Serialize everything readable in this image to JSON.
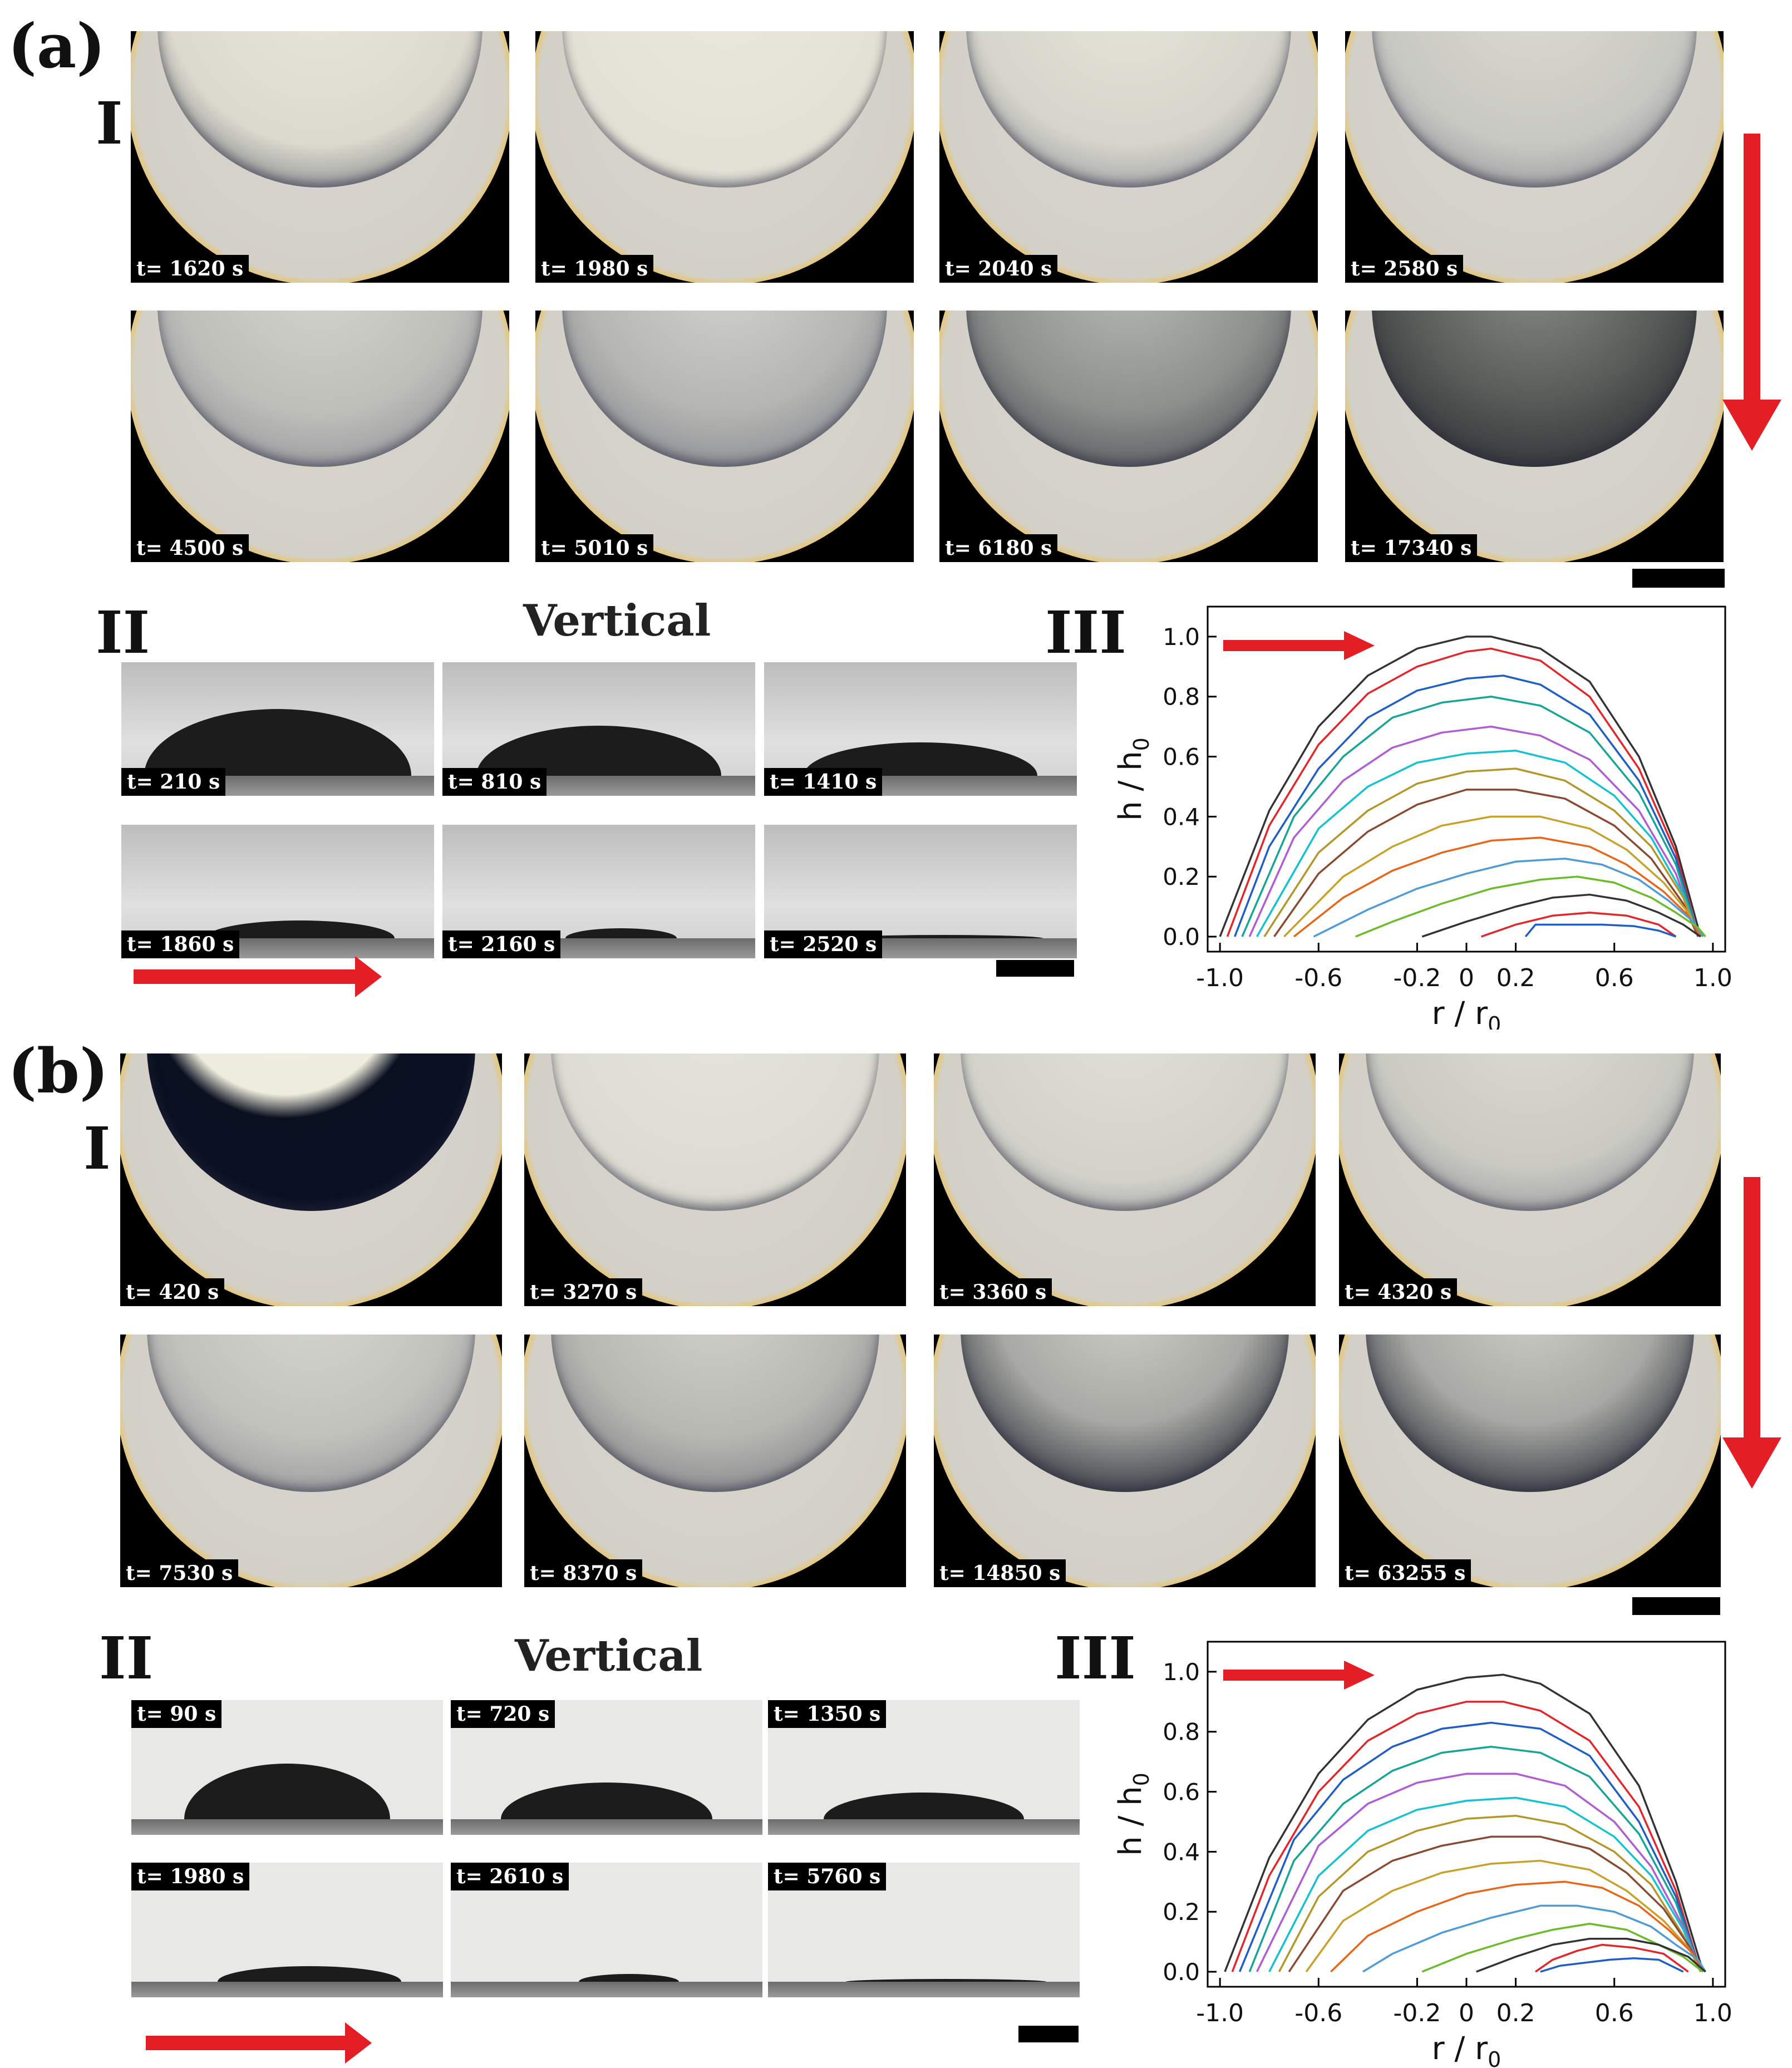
{
  "panel_a": {
    "label": "(a)",
    "sub_I": "I",
    "sub_II": "II",
    "sub_III": "III",
    "vertical": "Vertical",
    "top_times": [
      "t= 1620 s",
      "t= 1980 s",
      "t= 2040 s",
      "t= 2580 s",
      "t= 4500 s",
      "t= 5010 s",
      "t= 6180 s",
      "t= 17340 s"
    ],
    "side_times": [
      "t= 210 s",
      "t= 810 s",
      "t= 1410 s",
      "t= 1860 s",
      "t= 2160 s",
      "t= 2520 s"
    ]
  },
  "panel_b": {
    "label": "(b)",
    "sub_I": "I",
    "sub_II": "II",
    "sub_III": "III",
    "vertical": "Vertical",
    "top_times": [
      "t= 420 s",
      "t= 3270 s",
      "t= 3360 s",
      "t= 4320 s",
      "t= 7530 s",
      "t= 8370 s",
      "t= 14850 s",
      "t= 63255 s"
    ],
    "side_times": [
      "t= 90 s",
      "t= 720 s",
      "t= 1350 s",
      "t= 1980 s",
      "t= 2610 s",
      "t= 5760 s"
    ]
  },
  "chart_data": [
    {
      "type": "line",
      "panel": "a-III",
      "xlabel": "r / r0",
      "ylabel": "h / h0",
      "xlim": [
        -1.05,
        1.05
      ],
      "ylim": [
        -0.05,
        1.1
      ],
      "xticks": [
        "-1.0",
        "-0.6",
        "-0.2",
        "0",
        "0.2",
        "0.6",
        "1.0"
      ],
      "xtick_values": [
        -1.0,
        -0.6,
        -0.2,
        0,
        0.2,
        0.6,
        1.0
      ],
      "yticks": [
        "0.0",
        "0.2",
        "0.4",
        "0.6",
        "0.8",
        "1.0"
      ],
      "ytick_values": [
        0,
        0.2,
        0.4,
        0.6,
        0.8,
        1.0
      ],
      "colors": [
        "#333333",
        "#e3262a",
        "#1f5fc5",
        "#16a596",
        "#b05dd3",
        "#16c1d1",
        "#b5962a",
        "#8a4a32",
        "#c7a12a",
        "#e8661a",
        "#4f9bd6",
        "#6cbb2b",
        "#333333",
        "#e3262a",
        "#1f5fc5"
      ],
      "series": [
        {
          "x": [
            -1.0,
            -0.8,
            -0.6,
            -0.4,
            -0.2,
            0,
            0.1,
            0.3,
            0.5,
            0.7,
            0.85,
            0.95
          ],
          "y": [
            0,
            0.42,
            0.7,
            0.87,
            0.96,
            1.0,
            1.0,
            0.96,
            0.85,
            0.6,
            0.3,
            0
          ]
        },
        {
          "x": [
            -0.97,
            -0.8,
            -0.6,
            -0.4,
            -0.2,
            0,
            0.1,
            0.3,
            0.5,
            0.7,
            0.85,
            0.94
          ],
          "y": [
            0,
            0.37,
            0.64,
            0.81,
            0.9,
            0.95,
            0.96,
            0.92,
            0.8,
            0.56,
            0.28,
            0
          ]
        },
        {
          "x": [
            -0.94,
            -0.8,
            -0.6,
            -0.4,
            -0.2,
            0,
            0.15,
            0.3,
            0.5,
            0.7,
            0.85,
            0.94
          ],
          "y": [
            0,
            0.3,
            0.56,
            0.73,
            0.82,
            0.86,
            0.87,
            0.84,
            0.74,
            0.52,
            0.26,
            0
          ]
        },
        {
          "x": [
            -0.91,
            -0.7,
            -0.5,
            -0.3,
            -0.1,
            0.1,
            0.3,
            0.5,
            0.7,
            0.85,
            0.94
          ],
          "y": [
            0,
            0.4,
            0.6,
            0.73,
            0.78,
            0.8,
            0.77,
            0.68,
            0.48,
            0.24,
            0
          ]
        },
        {
          "x": [
            -0.88,
            -0.7,
            -0.5,
            -0.3,
            -0.1,
            0.1,
            0.3,
            0.5,
            0.7,
            0.85,
            0.94
          ],
          "y": [
            0,
            0.33,
            0.52,
            0.63,
            0.68,
            0.7,
            0.67,
            0.59,
            0.42,
            0.21,
            0
          ]
        },
        {
          "x": [
            -0.85,
            -0.6,
            -0.4,
            -0.2,
            0,
            0.2,
            0.4,
            0.6,
            0.75,
            0.88,
            0.94
          ],
          "y": [
            0,
            0.36,
            0.5,
            0.58,
            0.61,
            0.62,
            0.58,
            0.47,
            0.33,
            0.14,
            0
          ]
        },
        {
          "x": [
            -0.82,
            -0.6,
            -0.4,
            -0.2,
            0,
            0.2,
            0.4,
            0.6,
            0.75,
            0.88,
            0.94
          ],
          "y": [
            0,
            0.28,
            0.42,
            0.51,
            0.55,
            0.56,
            0.52,
            0.42,
            0.3,
            0.13,
            0
          ]
        },
        {
          "x": [
            -0.78,
            -0.6,
            -0.4,
            -0.2,
            0,
            0.2,
            0.4,
            0.6,
            0.75,
            0.88,
            0.94
          ],
          "y": [
            0,
            0.21,
            0.35,
            0.44,
            0.49,
            0.49,
            0.46,
            0.37,
            0.26,
            0.11,
            0
          ]
        },
        {
          "x": [
            -0.74,
            -0.5,
            -0.3,
            -0.1,
            0.1,
            0.3,
            0.5,
            0.65,
            0.8,
            0.9,
            0.95
          ],
          "y": [
            0,
            0.2,
            0.3,
            0.37,
            0.4,
            0.4,
            0.36,
            0.29,
            0.18,
            0.08,
            0
          ]
        },
        {
          "x": [
            -0.7,
            -0.5,
            -0.3,
            -0.1,
            0.1,
            0.3,
            0.5,
            0.65,
            0.8,
            0.9,
            0.95
          ],
          "y": [
            0,
            0.13,
            0.22,
            0.28,
            0.32,
            0.33,
            0.3,
            0.24,
            0.15,
            0.07,
            0
          ]
        },
        {
          "x": [
            -0.62,
            -0.4,
            -0.2,
            0,
            0.2,
            0.4,
            0.55,
            0.7,
            0.82,
            0.92,
            0.96
          ],
          "y": [
            0,
            0.09,
            0.16,
            0.21,
            0.25,
            0.26,
            0.24,
            0.19,
            0.12,
            0.05,
            0
          ]
        },
        {
          "x": [
            -0.45,
            -0.3,
            -0.1,
            0.1,
            0.3,
            0.45,
            0.6,
            0.75,
            0.85,
            0.94,
            0.97
          ],
          "y": [
            0,
            0.05,
            0.11,
            0.16,
            0.19,
            0.2,
            0.18,
            0.13,
            0.08,
            0.03,
            0
          ]
        },
        {
          "x": [
            -0.18,
            0,
            0.2,
            0.35,
            0.5,
            0.65,
            0.78,
            0.88,
            0.95
          ],
          "y": [
            0,
            0.05,
            0.1,
            0.13,
            0.14,
            0.12,
            0.08,
            0.04,
            0
          ]
        },
        {
          "x": [
            0.06,
            0.2,
            0.35,
            0.5,
            0.65,
            0.78,
            0.85
          ],
          "y": [
            0,
            0.04,
            0.07,
            0.08,
            0.07,
            0.04,
            0
          ]
        },
        {
          "x": [
            0.24,
            0.28,
            0.4,
            0.55,
            0.68,
            0.78,
            0.85
          ],
          "y": [
            0,
            0.04,
            0.04,
            0.04,
            0.035,
            0.02,
            0
          ]
        }
      ]
    },
    {
      "type": "line",
      "panel": "b-III",
      "xlabel": "r / r0",
      "ylabel": "h / h0",
      "xlim": [
        -1.05,
        1.05
      ],
      "ylim": [
        -0.05,
        1.1
      ],
      "xticks": [
        "-1.0",
        "-0.6",
        "-0.2",
        "0",
        "0.2",
        "0.6",
        "1.0"
      ],
      "xtick_values": [
        -1.0,
        -0.6,
        -0.2,
        0,
        0.2,
        0.6,
        1.0
      ],
      "yticks": [
        "0.0",
        "0.2",
        "0.4",
        "0.6",
        "0.8",
        "1.0"
      ],
      "ytick_values": [
        0,
        0.2,
        0.4,
        0.6,
        0.8,
        1.0
      ],
      "colors": [
        "#333333",
        "#e3262a",
        "#1f5fc5",
        "#16a596",
        "#b05dd3",
        "#16c1d1",
        "#b5962a",
        "#8a4a32",
        "#c7a12a",
        "#e8661a",
        "#4f9bd6",
        "#6cbb2b",
        "#333333",
        "#e3262a",
        "#1f5fc5"
      ],
      "series": [
        {
          "x": [
            -0.98,
            -0.8,
            -0.6,
            -0.4,
            -0.2,
            0,
            0.15,
            0.3,
            0.5,
            0.7,
            0.85,
            0.96
          ],
          "y": [
            0,
            0.38,
            0.66,
            0.84,
            0.94,
            0.98,
            0.99,
            0.96,
            0.86,
            0.62,
            0.3,
            0
          ]
        },
        {
          "x": [
            -0.95,
            -0.8,
            -0.6,
            -0.4,
            -0.2,
            0,
            0.15,
            0.3,
            0.5,
            0.7,
            0.85,
            0.95
          ],
          "y": [
            0,
            0.32,
            0.6,
            0.77,
            0.86,
            0.9,
            0.9,
            0.87,
            0.77,
            0.55,
            0.27,
            0
          ]
        },
        {
          "x": [
            -0.92,
            -0.7,
            -0.5,
            -0.3,
            -0.1,
            0.1,
            0.3,
            0.5,
            0.7,
            0.85,
            0.95
          ],
          "y": [
            0,
            0.44,
            0.64,
            0.75,
            0.81,
            0.83,
            0.81,
            0.72,
            0.5,
            0.25,
            0
          ]
        },
        {
          "x": [
            -0.88,
            -0.7,
            -0.5,
            -0.3,
            -0.1,
            0.1,
            0.3,
            0.5,
            0.7,
            0.85,
            0.95
          ],
          "y": [
            0,
            0.37,
            0.56,
            0.67,
            0.73,
            0.75,
            0.73,
            0.65,
            0.46,
            0.23,
            0
          ]
        },
        {
          "x": [
            -0.85,
            -0.6,
            -0.4,
            -0.2,
            0,
            0.2,
            0.4,
            0.6,
            0.75,
            0.88,
            0.95
          ],
          "y": [
            0,
            0.42,
            0.56,
            0.63,
            0.66,
            0.66,
            0.62,
            0.5,
            0.35,
            0.15,
            0
          ]
        },
        {
          "x": [
            -0.8,
            -0.6,
            -0.4,
            -0.2,
            0,
            0.2,
            0.4,
            0.6,
            0.75,
            0.88,
            0.95
          ],
          "y": [
            0,
            0.32,
            0.47,
            0.54,
            0.57,
            0.58,
            0.55,
            0.45,
            0.32,
            0.14,
            0
          ]
        },
        {
          "x": [
            -0.76,
            -0.6,
            -0.4,
            -0.2,
            0,
            0.2,
            0.4,
            0.6,
            0.75,
            0.88,
            0.95
          ],
          "y": [
            0,
            0.25,
            0.4,
            0.47,
            0.51,
            0.52,
            0.49,
            0.4,
            0.29,
            0.12,
            0
          ]
        },
        {
          "x": [
            -0.72,
            -0.5,
            -0.3,
            -0.1,
            0.1,
            0.3,
            0.5,
            0.65,
            0.8,
            0.9,
            0.96
          ],
          "y": [
            0,
            0.27,
            0.37,
            0.42,
            0.45,
            0.45,
            0.41,
            0.33,
            0.21,
            0.09,
            0
          ]
        },
        {
          "x": [
            -0.65,
            -0.5,
            -0.3,
            -0.1,
            0.1,
            0.3,
            0.5,
            0.65,
            0.8,
            0.9,
            0.96
          ],
          "y": [
            0,
            0.17,
            0.27,
            0.33,
            0.36,
            0.37,
            0.34,
            0.27,
            0.17,
            0.08,
            0
          ]
        },
        {
          "x": [
            -0.55,
            -0.4,
            -0.2,
            0,
            0.2,
            0.4,
            0.55,
            0.7,
            0.82,
            0.92,
            0.96
          ],
          "y": [
            0,
            0.12,
            0.2,
            0.26,
            0.29,
            0.3,
            0.28,
            0.22,
            0.14,
            0.06,
            0
          ]
        },
        {
          "x": [
            -0.42,
            -0.3,
            -0.1,
            0.1,
            0.3,
            0.45,
            0.6,
            0.75,
            0.85,
            0.94,
            0.97
          ],
          "y": [
            0,
            0.06,
            0.13,
            0.18,
            0.22,
            0.22,
            0.2,
            0.15,
            0.09,
            0.04,
            0
          ]
        },
        {
          "x": [
            -0.18,
            0,
            0.2,
            0.35,
            0.5,
            0.65,
            0.78,
            0.88,
            0.96
          ],
          "y": [
            0,
            0.06,
            0.11,
            0.14,
            0.16,
            0.14,
            0.09,
            0.05,
            0
          ]
        },
        {
          "x": [
            0.04,
            0.2,
            0.35,
            0.5,
            0.65,
            0.78,
            0.9,
            0.97
          ],
          "y": [
            0,
            0.05,
            0.09,
            0.11,
            0.11,
            0.09,
            0.05,
            0
          ]
        },
        {
          "x": [
            0.28,
            0.35,
            0.45,
            0.55,
            0.68,
            0.8,
            0.9
          ],
          "y": [
            0,
            0.04,
            0.07,
            0.09,
            0.08,
            0.06,
            0
          ]
        },
        {
          "x": [
            0.3,
            0.38,
            0.48,
            0.58,
            0.68,
            0.78,
            0.88
          ],
          "y": [
            0,
            0.02,
            0.03,
            0.04,
            0.045,
            0.04,
            0
          ]
        }
      ]
    }
  ]
}
